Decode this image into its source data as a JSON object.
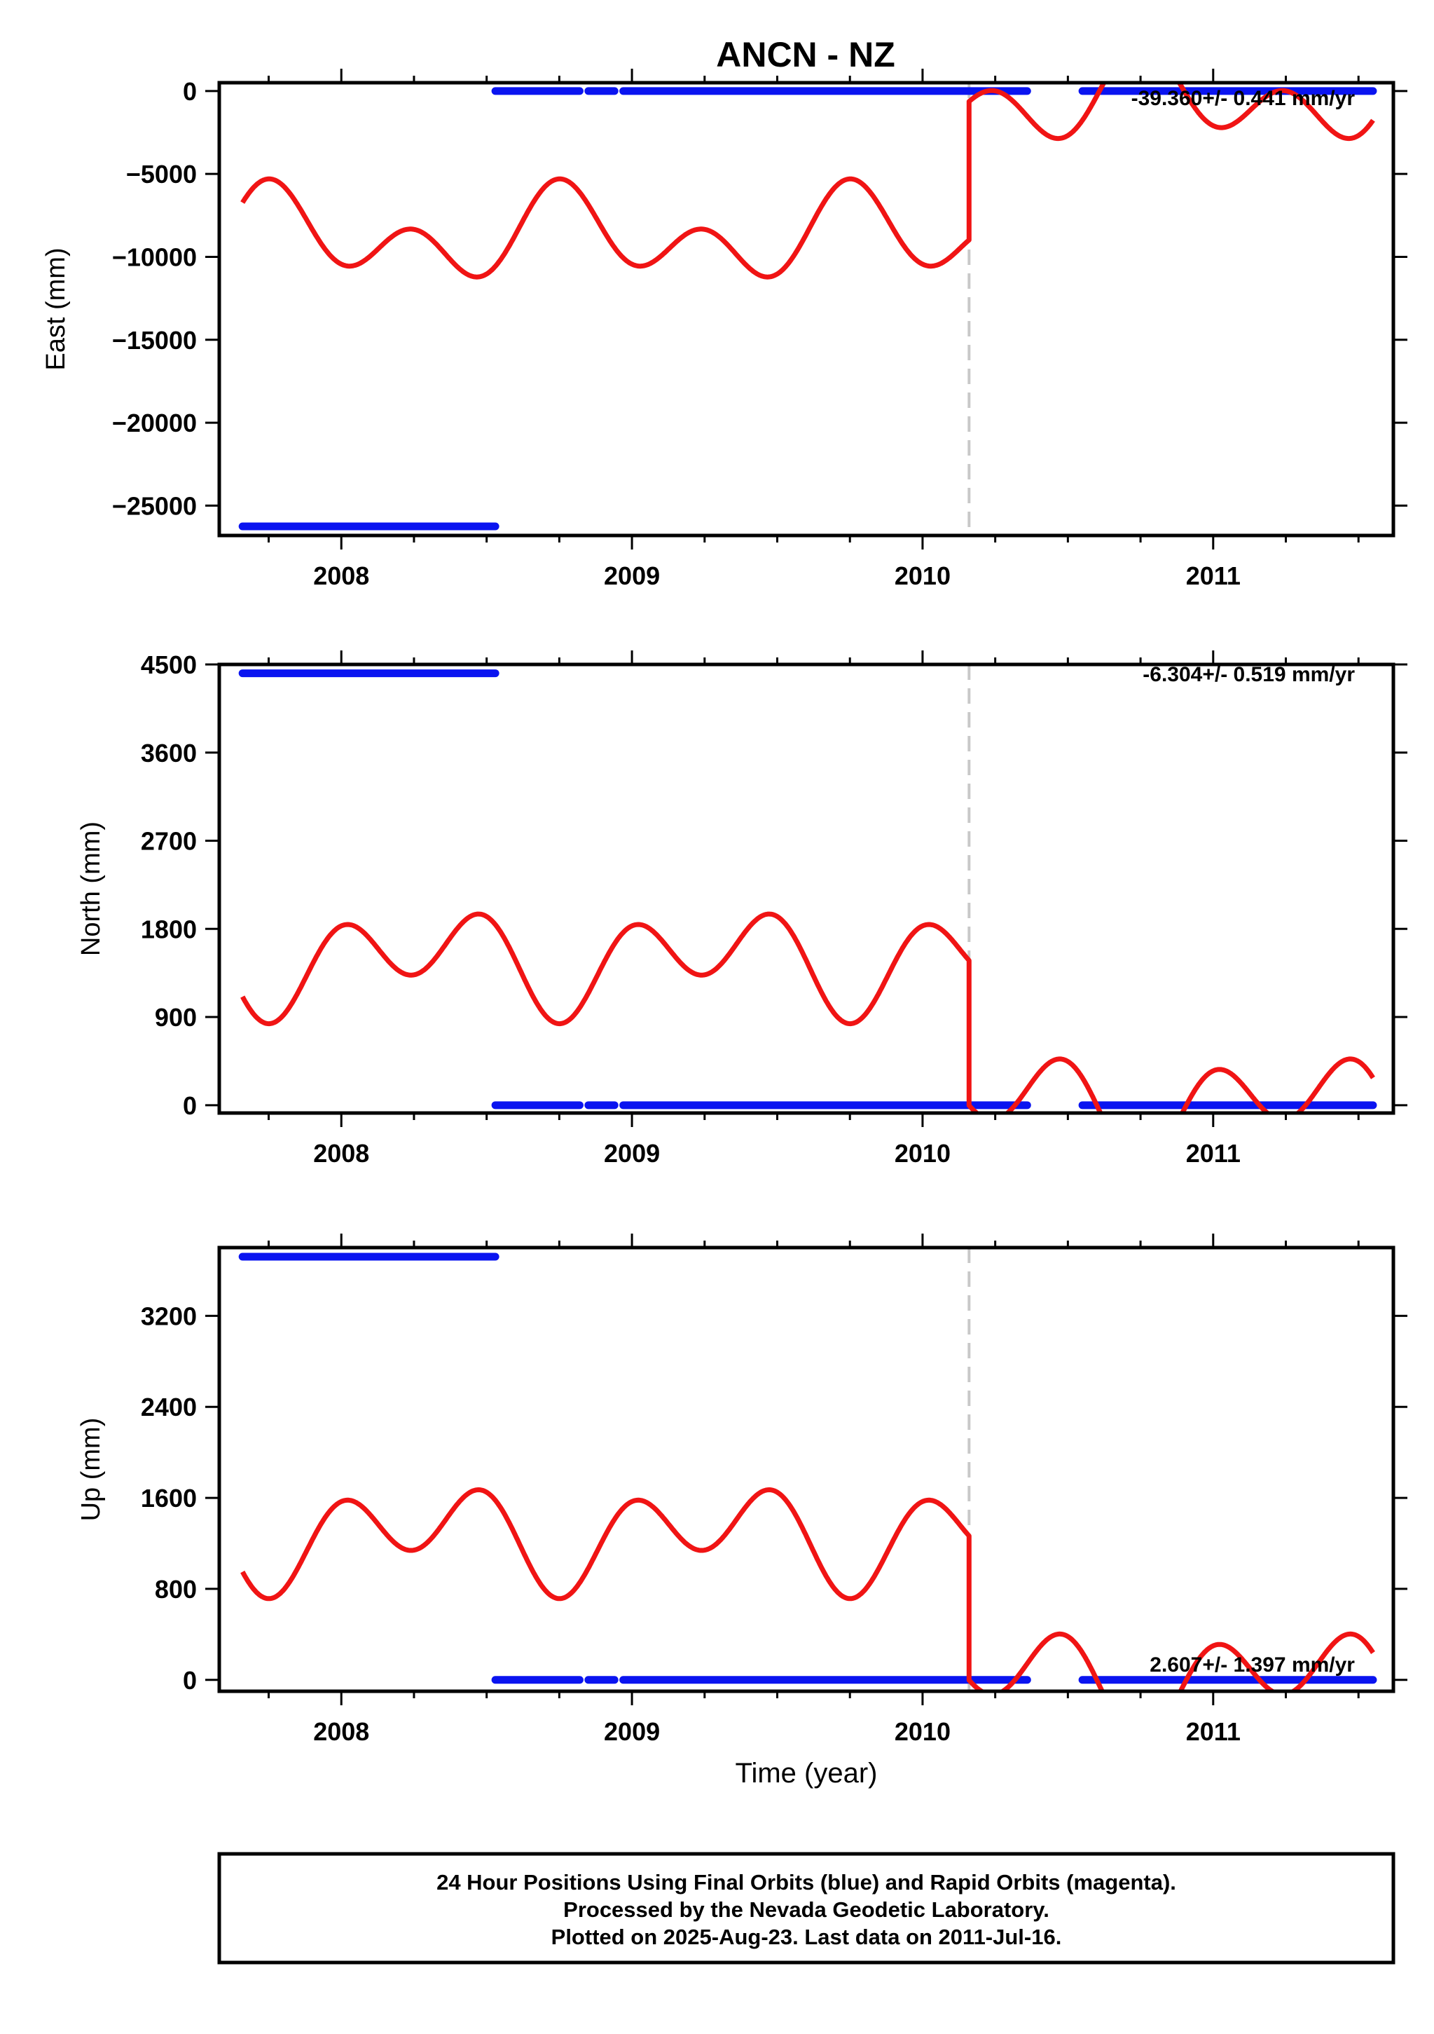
{
  "title": "ANCN - NZ",
  "colors": {
    "final_orbits": "#0a14f0",
    "model": "#f01414",
    "offset_line": "#c8c8c8"
  },
  "footer": {
    "line1": "24 Hour Positions Using Final Orbits (blue) and Rapid Orbits (magenta).",
    "line2": "Processed by the Nevada Geodetic Laboratory.",
    "line3": "Plotted on 2025-Aug-23. Last data on 2011-Jul-16."
  },
  "chart_data": [
    {
      "type": "scatter",
      "component": "East",
      "ylabel": "East (mm)",
      "xlabel": "",
      "rate_label": "-39.360+/- 0.441 mm/yr",
      "xlim": [
        2007.58,
        2011.62
      ],
      "ylim": [
        -26800,
        500
      ],
      "xticks": [
        2008,
        2009,
        2010,
        2011
      ],
      "yticks": [
        0,
        -5000,
        -10000,
        -15000,
        -20000,
        -25000
      ],
      "offset_epoch": 2010.16,
      "series": [
        {
          "kind": "final_orbits",
          "segments": [
            {
              "x": [
                2007.66,
                2008.53
              ],
              "y": [
                -26250,
                -26250
              ]
            },
            {
              "x": [
                2008.53,
                2008.82
              ],
              "y": [
                0,
                0
              ]
            },
            {
              "x": [
                2008.85,
                2008.94
              ],
              "y": [
                0,
                0
              ]
            },
            {
              "x": [
                2008.97,
                2010.36
              ],
              "y": [
                0,
                0
              ]
            },
            {
              "x": [
                2010.55,
                2011.55
              ],
              "y": [
                0,
                0
              ]
            }
          ]
        },
        {
          "kind": "model",
          "pre_offset": {
            "x0": 2007.66,
            "x1": 2010.16,
            "offset": -8780,
            "annual_amp": 1550,
            "annual_phase": 2.95,
            "semi_amp": 1960,
            "semi_phase": -1.52
          },
          "post_offset": {
            "x0": 2010.16,
            "x1": 2011.55,
            "offset": -430,
            "annual_amp": 1550,
            "annual_phase": 2.95,
            "semi_amp": 1960,
            "semi_phase": -1.52
          }
        }
      ]
    },
    {
      "type": "scatter",
      "component": "North",
      "ylabel": "North (mm)",
      "xlabel": "",
      "rate_label": "-6.304+/- 0.519 mm/yr",
      "xlim": [
        2007.58,
        2011.62
      ],
      "ylim": [
        -80,
        4500
      ],
      "xticks": [
        2008,
        2009,
        2010,
        2011
      ],
      "yticks": [
        0,
        900,
        1800,
        2700,
        3600,
        4500
      ],
      "offset_epoch": 2010.16,
      "series": [
        {
          "kind": "final_orbits",
          "segments": [
            {
              "x": [
                2007.66,
                2008.53
              ],
              "y": [
                4410,
                4410
              ]
            },
            {
              "x": [
                2008.53,
                2008.82
              ],
              "y": [
                0,
                0
              ]
            },
            {
              "x": [
                2008.85,
                2008.94
              ],
              "y": [
                0,
                0
              ]
            },
            {
              "x": [
                2008.97,
                2010.36
              ],
              "y": [
                0,
                0
              ]
            },
            {
              "x": [
                2010.55,
                2011.55
              ],
              "y": [
                0,
                0
              ]
            }
          ]
        },
        {
          "kind": "model",
          "pre_offset": {
            "x0": 2007.66,
            "x1": 2010.16,
            "offset": 1480,
            "annual_amp": 254,
            "annual_phase": -0.19,
            "semi_amp": 399,
            "semi_phase": 1.62
          },
          "post_offset": {
            "x0": 2010.16,
            "x1": 2011.55,
            "offset": 0,
            "annual_amp": 254,
            "annual_phase": -0.19,
            "semi_amp": 399,
            "semi_phase": 1.62
          }
        }
      ]
    },
    {
      "type": "scatter",
      "component": "Up",
      "ylabel": "Up (mm)",
      "xlabel": "Time (year)",
      "rate_label": "2.607+/- 1.397 mm/yr",
      "xlim": [
        2007.58,
        2011.62
      ],
      "ylim": [
        -100,
        3800
      ],
      "xticks": [
        2008,
        2009,
        2010,
        2011
      ],
      "yticks": [
        0,
        800,
        1600,
        2400,
        3200
      ],
      "offset_epoch": 2010.16,
      "series": [
        {
          "kind": "final_orbits",
          "segments": [
            {
              "x": [
                2007.66,
                2008.53
              ],
              "y": [
                3720,
                3720
              ]
            },
            {
              "x": [
                2008.53,
                2008.82
              ],
              "y": [
                0,
                0
              ]
            },
            {
              "x": [
                2008.85,
                2008.94
              ],
              "y": [
                0,
                0
              ]
            },
            {
              "x": [
                2008.97,
                2010.36
              ],
              "y": [
                0,
                0
              ]
            },
            {
              "x": [
                2010.55,
                2011.55
              ],
              "y": [
                0,
                0
              ]
            }
          ]
        },
        {
          "kind": "model",
          "pre_offset": {
            "x0": 2007.66,
            "x1": 2010.16,
            "offset": 1268,
            "annual_amp": 217,
            "annual_phase": -0.19,
            "semi_amp": 341,
            "semi_phase": 1.62
          },
          "post_offset": {
            "x0": 2010.16,
            "x1": 2011.55,
            "offset": 0,
            "annual_amp": 217,
            "annual_phase": -0.19,
            "semi_amp": 341,
            "semi_phase": 1.62
          }
        }
      ]
    }
  ]
}
